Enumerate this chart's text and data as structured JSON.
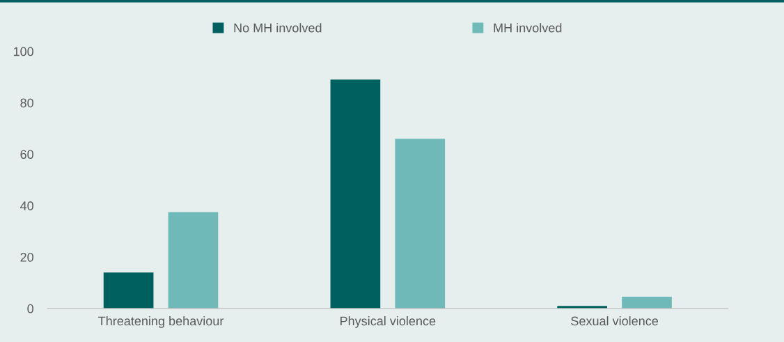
{
  "chart_data": {
    "type": "bar",
    "categories": [
      "Threatening behaviour",
      "Physical violence",
      "Sexual violence"
    ],
    "series": [
      {
        "name": "No MH involved",
        "color": "#005f5f",
        "values": [
          14,
          89,
          1
        ]
      },
      {
        "name": "MH involved",
        "color": "#6fbab8",
        "values": [
          37.5,
          66,
          4.6
        ]
      }
    ],
    "ylim": [
      0,
      100
    ],
    "yticks": [
      0,
      20,
      40,
      60,
      80,
      100
    ],
    "grid": false,
    "legend": "top"
  }
}
